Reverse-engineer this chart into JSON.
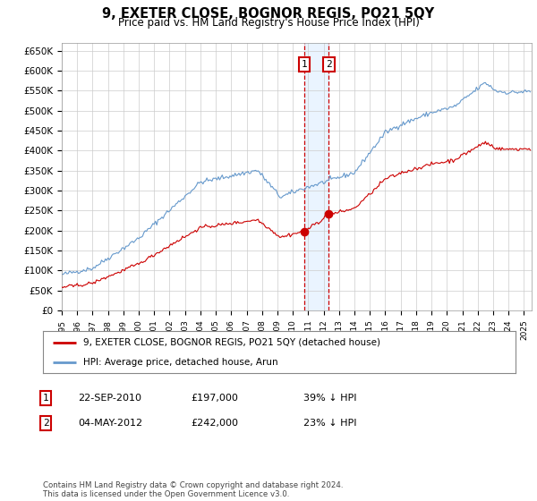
{
  "title": "9, EXETER CLOSE, BOGNOR REGIS, PO21 5QY",
  "subtitle": "Price paid vs. HM Land Registry's House Price Index (HPI)",
  "legend_label_red": "9, EXETER CLOSE, BOGNOR REGIS, PO21 5QY (detached house)",
  "legend_label_blue": "HPI: Average price, detached house, Arun",
  "transaction_1": {
    "label": "1",
    "date": "22-SEP-2010",
    "price": 197000,
    "pct": "39%",
    "direction": "↓",
    "x": 2010.73
  },
  "transaction_2": {
    "label": "2",
    "date": "04-MAY-2012",
    "price": 242000,
    "pct": "23%",
    "direction": "↓",
    "x": 2012.34
  },
  "footer": "Contains HM Land Registry data © Crown copyright and database right 2024.\nThis data is licensed under the Open Government Licence v3.0.",
  "ylim": [
    0,
    670000
  ],
  "xlim_start": 1995,
  "xlim_end": 2025.5,
  "yticks": [
    0,
    50000,
    100000,
    150000,
    200000,
    250000,
    300000,
    350000,
    400000,
    450000,
    500000,
    550000,
    600000,
    650000
  ],
  "ytick_labels": [
    "£0",
    "£50K",
    "£100K",
    "£150K",
    "£200K",
    "£250K",
    "£300K",
    "£350K",
    "£400K",
    "£450K",
    "£500K",
    "£550K",
    "£600K",
    "£650K"
  ],
  "grid_color": "#cccccc",
  "bg_color": "#ffffff",
  "red_color": "#cc0000",
  "blue_color": "#6699cc",
  "shade_color": "#ddeeff",
  "dashed_color": "#cc0000"
}
